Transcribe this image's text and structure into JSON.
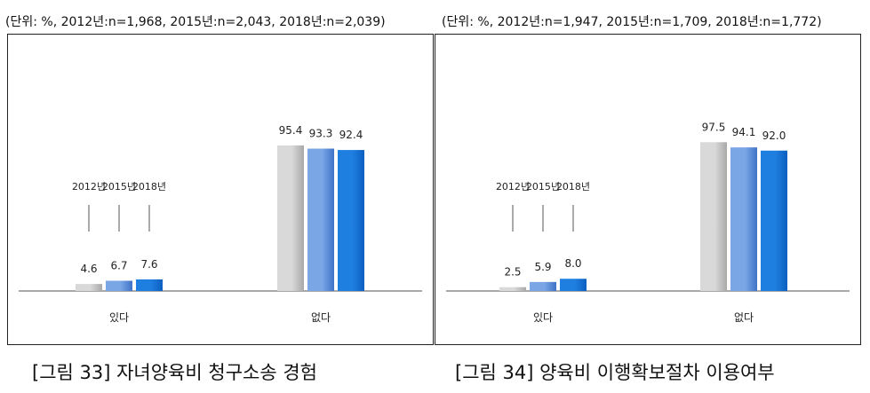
{
  "chart_data": [
    {
      "type": "bar",
      "unit_note": "(단위: %, 2012년:n=1,968, 2015년:n=2,043, 2018년:n=2,039)",
      "caption": "[그림 33] 자녀양육비 청구소송 경험",
      "categories": [
        "있다",
        "없다"
      ],
      "series": [
        {
          "name": "2012년",
          "values": [
            4.6,
            95.4
          ]
        },
        {
          "name": "2015년",
          "values": [
            6.7,
            93.3
          ]
        },
        {
          "name": "2018년",
          "values": [
            7.6,
            92.4
          ]
        }
      ],
      "value_labels": [
        [
          "4.6",
          "6.7",
          "7.6"
        ],
        [
          "95.4",
          "93.3",
          "92.4"
        ]
      ],
      "ylim": [
        0,
        100
      ],
      "grid": false,
      "legend": "year labels above first category"
    },
    {
      "type": "bar",
      "unit_note": "(단위: %, 2012년:n=1,947, 2015년:n=1,709, 2018년:n=1,772)",
      "caption": "[그림 34] 양육비 이행확보절차 이용여부",
      "categories": [
        "있다",
        "없다"
      ],
      "series": [
        {
          "name": "2012년",
          "values": [
            2.5,
            97.5
          ]
        },
        {
          "name": "2015년",
          "values": [
            5.9,
            94.1
          ]
        },
        {
          "name": "2018년",
          "values": [
            8.0,
            92.0
          ]
        }
      ],
      "value_labels": [
        [
          "2.5",
          "5.9",
          "8.0"
        ],
        [
          "97.5",
          "94.1",
          "92.0"
        ]
      ],
      "ylim": [
        0,
        100
      ],
      "grid": false,
      "legend": "year labels above first category"
    }
  ],
  "colors": {
    "series": [
      "#d9d9d9",
      "#7aa6e6",
      "#1f7fe0"
    ],
    "series_dark": [
      "#a8a8a8",
      "#3f73c8",
      "#0b5fc0"
    ],
    "axis": "#555555"
  }
}
